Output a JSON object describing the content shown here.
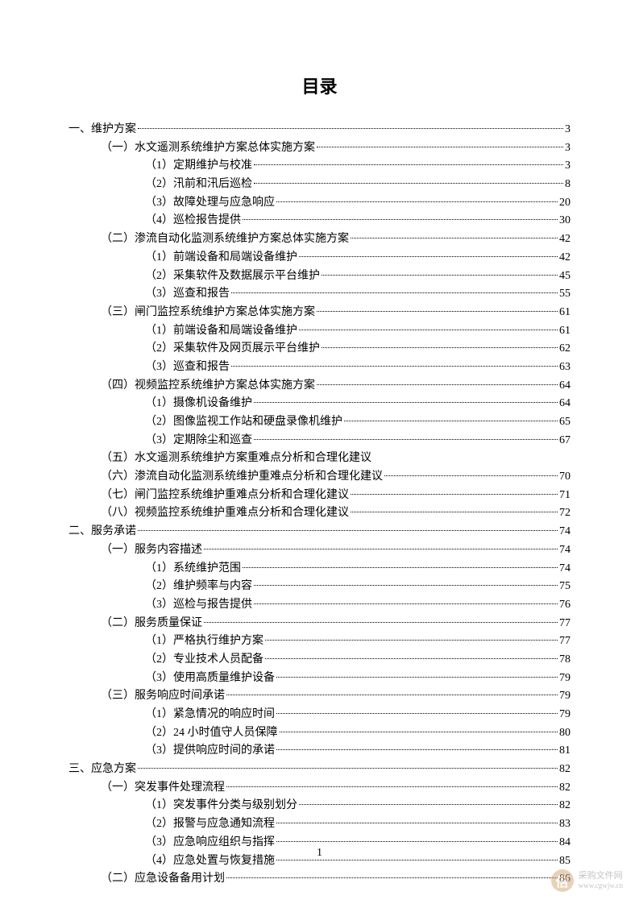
{
  "title": "目录",
  "pageNumber": "1",
  "watermark": {
    "label": "采购文件网",
    "url": "www.cgwjw.cn",
    "iconText": "倍"
  },
  "entries": [
    {
      "level": 0,
      "text": "一、维护方案",
      "page": "3"
    },
    {
      "level": 1,
      "text": "（一）水文遥测系统维护方案总体实施方案",
      "page": "3"
    },
    {
      "level": 2,
      "text": "（1）定期维护与校准",
      "page": "3"
    },
    {
      "level": 2,
      "text": "（2）汛前和汛后巡检",
      "page": "8"
    },
    {
      "level": 2,
      "text": "（3）故障处理与应急响应",
      "page": "20"
    },
    {
      "level": 2,
      "text": "（4）巡检报告提供",
      "page": "30"
    },
    {
      "level": 1,
      "text": "（二）渗流自动化监测系统维护方案总体实施方案",
      "page": "42"
    },
    {
      "level": 2,
      "text": "（1）前端设备和局端设备维护",
      "page": "42"
    },
    {
      "level": 2,
      "text": "（2）采集软件及数据展示平台维护",
      "page": "45"
    },
    {
      "level": 2,
      "text": "（3）巡查和报告",
      "page": "55"
    },
    {
      "level": 1,
      "text": "（三）闸门监控系统维护方案总体实施方案",
      "page": "61"
    },
    {
      "level": 2,
      "text": "（1）前端设备和局端设备维护",
      "page": "61"
    },
    {
      "level": 2,
      "text": "（2）采集软件及网页展示平台维护",
      "page": "62"
    },
    {
      "level": 2,
      "text": "（3）巡查和报告",
      "page": "63"
    },
    {
      "level": 1,
      "text": "（四）视频监控系统维护方案总体实施方案",
      "page": "64"
    },
    {
      "level": 2,
      "text": "（1）摄像机设备维护",
      "page": "64"
    },
    {
      "level": 2,
      "text": "（2）图像监视工作站和硬盘录像机维护",
      "page": "65"
    },
    {
      "level": 2,
      "text": "（3）定期除尘和巡查",
      "page": "67"
    },
    {
      "level": 1,
      "text": "（五）水文遥测系统维护方案重难点分析和合理化建议",
      "page": ""
    },
    {
      "level": 1,
      "text": "（六）渗流自动化监测系统维护重难点分析和合理化建议",
      "page": "70"
    },
    {
      "level": 1,
      "text": "（七）闸门监控系统维护重难点分析和合理化建议",
      "page": "71"
    },
    {
      "level": 1,
      "text": "（八）视频监控系统维护重难点分析和合理化建议",
      "page": "72"
    },
    {
      "level": 0,
      "text": "二、服务承诺",
      "page": "74"
    },
    {
      "level": 1,
      "text": "（一）服务内容描述",
      "page": "74"
    },
    {
      "level": 2,
      "text": "（1）系统维护范围",
      "page": "74"
    },
    {
      "level": 2,
      "text": "（2）维护频率与内容",
      "page": "75"
    },
    {
      "level": 2,
      "text": "（3）巡检与报告提供",
      "page": "76"
    },
    {
      "level": 1,
      "text": "（二）服务质量保证",
      "page": "77"
    },
    {
      "level": 2,
      "text": "（1）严格执行维护方案",
      "page": "77"
    },
    {
      "level": 2,
      "text": "（2）专业技术人员配备",
      "page": "78"
    },
    {
      "level": 2,
      "text": "（3）使用高质量维护设备",
      "page": "79"
    },
    {
      "level": 1,
      "text": "（三）服务响应时间承诺",
      "page": "79"
    },
    {
      "level": 2,
      "text": "（1）紧急情况的响应时间",
      "page": "79"
    },
    {
      "level": 2,
      "text": "（2）24 小时值守人员保障",
      "page": "80"
    },
    {
      "level": 2,
      "text": "（3）提供响应时间的承诺",
      "page": "81"
    },
    {
      "level": 0,
      "text": "三、应急方案",
      "page": "82"
    },
    {
      "level": 1,
      "text": "（一）突发事件处理流程",
      "page": "82"
    },
    {
      "level": 2,
      "text": "（1）突发事件分类与级别划分",
      "page": "82"
    },
    {
      "level": 2,
      "text": "（2）报警与应急通知流程",
      "page": "83"
    },
    {
      "level": 2,
      "text": "（3）应急响应组织与指挥",
      "page": "84"
    },
    {
      "level": 2,
      "text": "（4）应急处置与恢复措施",
      "page": "85"
    },
    {
      "level": 1,
      "text": "（二）应急设备备用计划",
      "page": "86"
    }
  ]
}
